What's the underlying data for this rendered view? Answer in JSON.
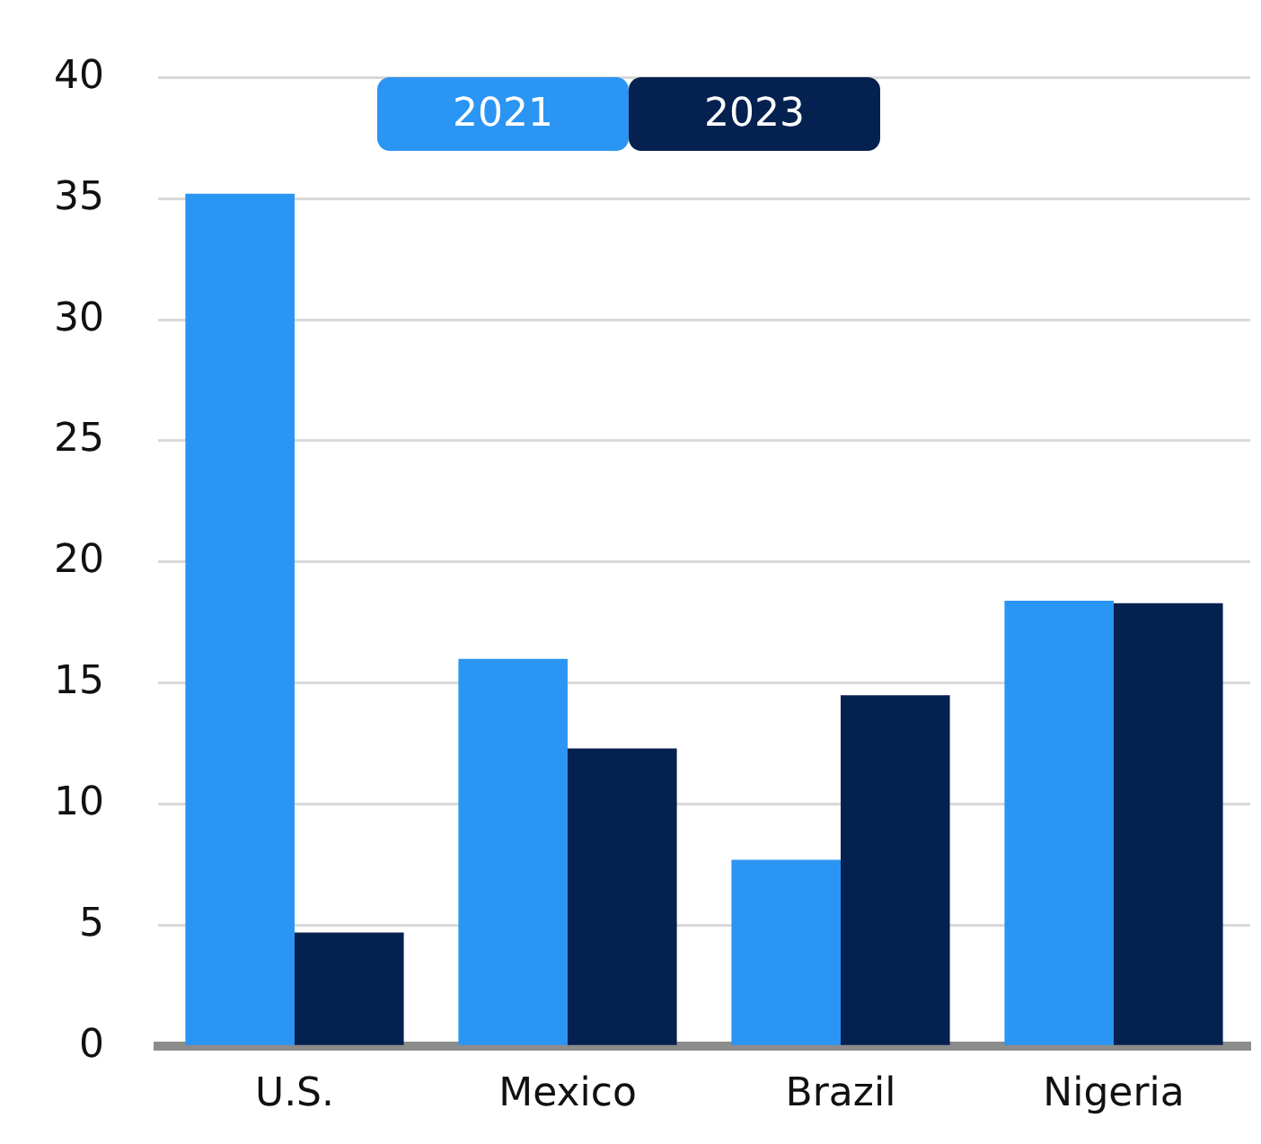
{
  "chart_data": {
    "type": "bar",
    "categories": [
      "U.S.",
      "Mexico",
      "Brazil",
      "Nigeria"
    ],
    "series": [
      {
        "name": "2021",
        "color": "#2b95f4",
        "values": [
          35.2,
          16.0,
          7.7,
          18.4
        ]
      },
      {
        "name": "2023",
        "color": "#04214f",
        "values": [
          4.7,
          12.3,
          14.5,
          18.3
        ]
      }
    ],
    "ylim": [
      0,
      40
    ],
    "yticks": [
      0,
      5,
      10,
      15,
      20,
      25,
      30,
      35,
      40
    ],
    "grid": "y",
    "legend": "top"
  }
}
